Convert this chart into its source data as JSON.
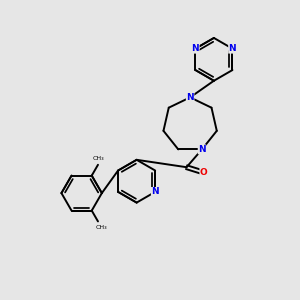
{
  "background_color": "#e6e6e6",
  "bond_color": "#000000",
  "N_color": "#0000ee",
  "O_color": "#ee0000",
  "figsize": [
    3.0,
    3.0
  ],
  "dpi": 100,
  "xlim": [
    0,
    10
  ],
  "ylim": [
    0,
    10
  ]
}
